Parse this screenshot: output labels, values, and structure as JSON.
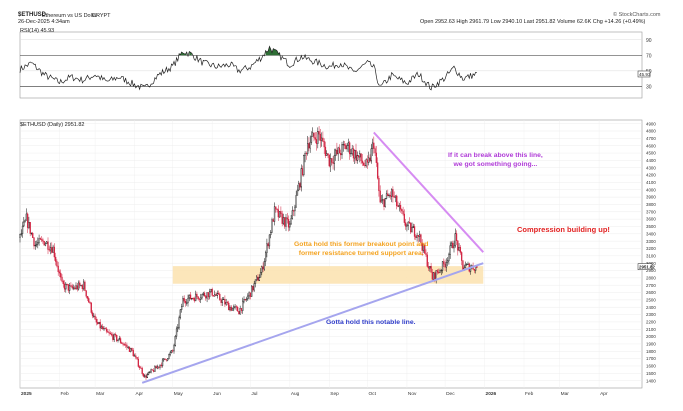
{
  "header": {
    "symbol": "$ETHUSD",
    "name": "Ethereum vs US Dollar",
    "exchange": "CRYPT",
    "date": "26-Dec-2025 4:34am",
    "stats": "Open 2952.63  High 2961.79  Low 2940.10  Last 2951.82  Volume 62.6K  Chg +14.26 (+0.49%)",
    "watermark": "© StockCharts.com",
    "rsi_label": "RSI(14) 45.93",
    "main_label": "$ETHUSD (Daily) 2951.82"
  },
  "chart_data": [
    {
      "type": "line",
      "name": "RSI(14)",
      "ylim": [
        15,
        100
      ],
      "yticks": [
        "90",
        "70",
        "50",
        "30"
      ],
      "reference_lines": [
        70,
        30
      ],
      "last_value": "45.93",
      "last_label": "45.93",
      "x": [
        "2025-01-01",
        "2025-01-10",
        "2025-01-20",
        "2025-02-01",
        "2025-02-10",
        "2025-02-20",
        "2025-03-01",
        "2025-03-10",
        "2025-03-20",
        "2025-04-01",
        "2025-04-09",
        "2025-04-20",
        "2025-05-01",
        "2025-05-09",
        "2025-05-15",
        "2025-05-25",
        "2025-06-05",
        "2025-06-15",
        "2025-06-22",
        "2025-07-01",
        "2025-07-10",
        "2025-07-16",
        "2025-07-22",
        "2025-08-01",
        "2025-08-10",
        "2025-08-20",
        "2025-09-01",
        "2025-09-10",
        "2025-09-20",
        "2025-10-01",
        "2025-10-06",
        "2025-10-11",
        "2025-10-20",
        "2025-11-01",
        "2025-11-10",
        "2025-11-20",
        "2025-12-01",
        "2025-12-08",
        "2025-12-15",
        "2025-12-26"
      ],
      "values": [
        52,
        60,
        45,
        35,
        42,
        38,
        45,
        36,
        42,
        32,
        27,
        45,
        56,
        75,
        72,
        60,
        55,
        58,
        50,
        55,
        68,
        80,
        72,
        58,
        68,
        62,
        55,
        60,
        48,
        60,
        54,
        28,
        44,
        34,
        46,
        28,
        41,
        54,
        40,
        46
      ]
    },
    {
      "type": "line",
      "name": "$ETHUSD (Daily)",
      "ylim": [
        1300,
        4950
      ],
      "yticks": [
        "4900",
        "4800",
        "4700",
        "4600",
        "4500",
        "4400",
        "4300",
        "4200",
        "4100",
        "4000",
        "3900",
        "3800",
        "3700",
        "3600",
        "3500",
        "3400",
        "3300",
        "3200",
        "3100",
        "3000",
        "2900",
        "2800",
        "2700",
        "2600",
        "2500",
        "2400",
        "2300",
        "2200",
        "2100",
        "2000",
        "1900",
        "1800",
        "1700",
        "1600",
        "1500",
        "1400"
      ],
      "last_value": "2951.82",
      "last_label": "2951.82",
      "x_ticks": [
        "2025",
        "Feb",
        "Mar",
        "Apr",
        "May",
        "Jun",
        "Jul",
        "Aug",
        "Sep",
        "Oct",
        "Nov",
        "Dec",
        "2026",
        "Feb",
        "Mar",
        "Apr"
      ],
      "x": [
        "2025-01-01",
        "2025-01-06",
        "2025-01-13",
        "2025-01-20",
        "2025-01-27",
        "2025-02-03",
        "2025-02-10",
        "2025-02-20",
        "2025-03-01",
        "2025-03-10",
        "2025-03-20",
        "2025-03-30",
        "2025-04-09",
        "2025-04-20",
        "2025-05-01",
        "2025-05-09",
        "2025-05-20",
        "2025-06-01",
        "2025-06-15",
        "2025-06-22",
        "2025-07-01",
        "2025-07-10",
        "2025-07-20",
        "2025-08-01",
        "2025-08-10",
        "2025-08-15",
        "2025-08-24",
        "2025-09-01",
        "2025-09-15",
        "2025-10-01",
        "2025-10-06",
        "2025-10-11",
        "2025-10-20",
        "2025-11-01",
        "2025-11-10",
        "2025-11-21",
        "2025-12-01",
        "2025-12-09",
        "2025-12-15",
        "2025-12-26"
      ],
      "values": [
        3350,
        3600,
        3250,
        3300,
        3200,
        2700,
        2650,
        2700,
        2200,
        2050,
        1950,
        1800,
        1450,
        1600,
        1800,
        2500,
        2550,
        2600,
        2400,
        2350,
        2600,
        2900,
        3700,
        3500,
        4200,
        4650,
        4750,
        4400,
        4600,
        4300,
        4650,
        3800,
        3950,
        3500,
        3400,
        2800,
        3000,
        3350,
        2950,
        2950
      ]
    }
  ],
  "annotations": {
    "zone_label": "Gotta hold this former breakout point and\nformer resistance turned support area.",
    "upper_line_label": "If it can break above this line,\nwe got something going...",
    "compression_label": "Compression building up!",
    "lower_line_label": "Gotta hold this notable line.",
    "support_zone": [
      2720,
      2960
    ],
    "upper_trendline": {
      "from": [
        "2025-10-06",
        4780
      ],
      "to": [
        "2025-12-31",
        3150
      ]
    },
    "lower_trendline": {
      "from": [
        "2025-04-07",
        1370
      ],
      "to": [
        "2025-12-31",
        3000
      ]
    },
    "colors": {
      "zone": "#fce3b3",
      "zone_text": "#f3a21f",
      "upper_line": "#d68cf2",
      "upper_text": "#b03bd8",
      "lower_line": "#a5a5ee",
      "lower_text": "#2f3cc9",
      "compression_text": "#e22222",
      "candle_up": "#111111",
      "candle_down": "#d1213f",
      "rsi_overbought_fill": "#2e6e35"
    }
  }
}
